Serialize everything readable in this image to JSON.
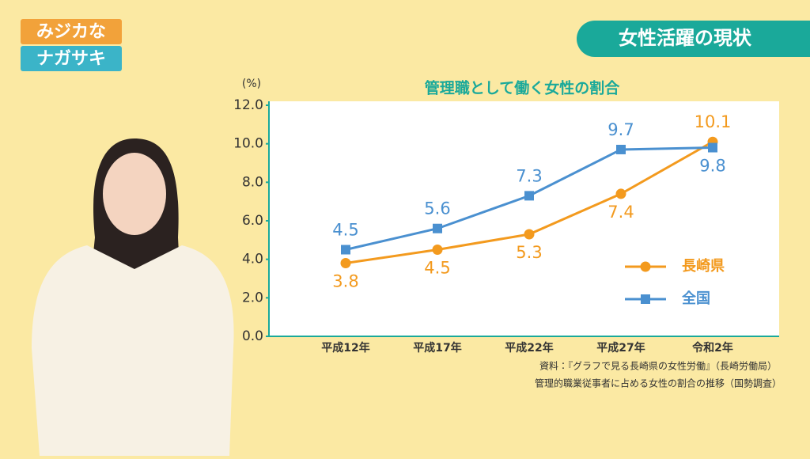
{
  "logo": {
    "line1": "みジカな",
    "line2": "ナガサキ"
  },
  "banner": {
    "title": "女性活躍の現状"
  },
  "source": {
    "line1": "資料：『グラフで見る長崎県の女性労働』（長崎労働局）",
    "line2": "管理的職業従事者に占める女性の割合の推移（国勢調査）"
  },
  "chart_data": {
    "type": "line",
    "title": "管理職として働く女性の割合",
    "y_label": "(%)",
    "categories": [
      "平成12年",
      "平成17年",
      "平成22年",
      "平成27年",
      "令和2年"
    ],
    "series": [
      {
        "name": "長崎県",
        "color": "#f39a1e",
        "marker": "circle",
        "values": [
          3.8,
          4.5,
          5.3,
          7.4,
          10.1
        ]
      },
      {
        "name": "全国",
        "color": "#4a90d0",
        "marker": "square",
        "values": [
          4.5,
          5.6,
          7.3,
          9.7,
          9.8
        ]
      }
    ],
    "ylim": [
      0,
      12
    ],
    "yticks": [
      {
        "value": 0,
        "label": "0.0"
      },
      {
        "value": 2,
        "label": "2.0"
      },
      {
        "value": 4,
        "label": "4.0"
      },
      {
        "value": 6,
        "label": "6.0"
      },
      {
        "value": 8,
        "label": "8.0"
      },
      {
        "value": 10,
        "label": "10.0"
      },
      {
        "value": 12,
        "label": "12.0"
      }
    ]
  }
}
